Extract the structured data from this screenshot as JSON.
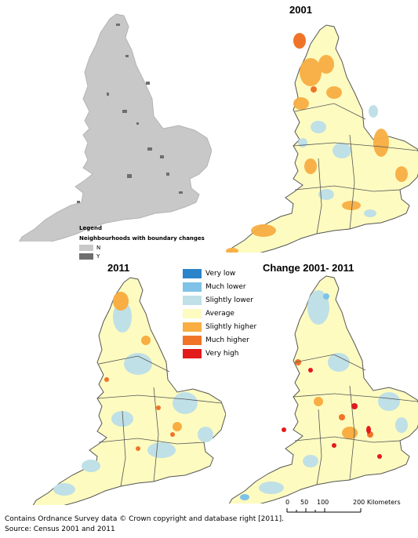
{
  "maps": {
    "boundary": {
      "legend_title": "Legend",
      "legend_subtitle": "Neighbourhoods with boundary changes",
      "items": [
        {
          "label": "N",
          "color": "#c8c8c8"
        },
        {
          "label": "Y",
          "color": "#6e6e6e"
        }
      ]
    },
    "m2001": {
      "title": "2001"
    },
    "m2011": {
      "title": "2011"
    },
    "change": {
      "title": "Change 2001- 2011"
    }
  },
  "legend": [
    {
      "label": "Very low",
      "color": "#2b83c9"
    },
    {
      "label": "Much lower",
      "color": "#7fc2e8"
    },
    {
      "label": "Slightly lower",
      "color": "#bfe0e6"
    },
    {
      "label": "Average",
      "color": "#fdfbc0"
    },
    {
      "label": "Slightly higher",
      "color": "#f8ae42"
    },
    {
      "label": "Much higher",
      "color": "#f07428"
    },
    {
      "label": "Very high",
      "color": "#e31a1c"
    }
  ],
  "scale_bar": {
    "ticks": [
      "0",
      "50",
      "100",
      "200 Kilometers"
    ]
  },
  "footer": {
    "line1": "Contains Ordnance Survey data © Crown copyright and database right [2011].",
    "line2": "Source: Census 2001 and 2011"
  }
}
